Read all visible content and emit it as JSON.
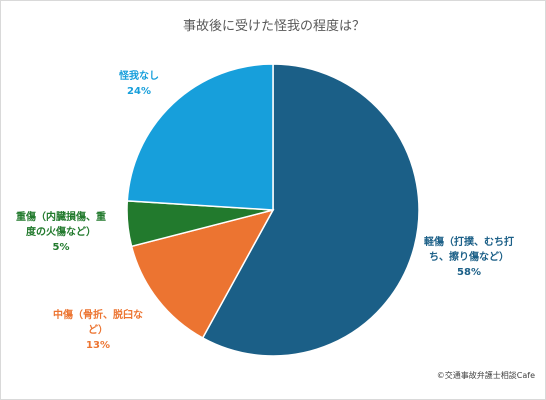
{
  "chart_data": {
    "type": "pie",
    "title": "事故後に受けた怪我の程度は？",
    "slices": [
      {
        "label_lines": [
          "軽傷（打撲、むち打",
          "ち、擦り傷など）"
        ],
        "value": 58,
        "percent_label": "58%",
        "color": "#1b5f87"
      },
      {
        "label_lines": [
          "中傷（骨折、脱臼な",
          "ど）"
        ],
        "value": 13,
        "percent_label": "13%",
        "color": "#ec7431"
      },
      {
        "label_lines": [
          "重傷（内臓損傷、重",
          "度の火傷など）"
        ],
        "value": 5,
        "percent_label": "5%",
        "color": "#227a2d"
      },
      {
        "label_lines": [
          "怪我なし"
        ],
        "value": 24,
        "percent_label": "24%",
        "color": "#179fdb"
      }
    ],
    "legend": "none",
    "start_angle_deg": 0,
    "direction": "clockwise"
  },
  "footer": {
    "copyright": "©交通事故弁護士相談Cafe"
  }
}
